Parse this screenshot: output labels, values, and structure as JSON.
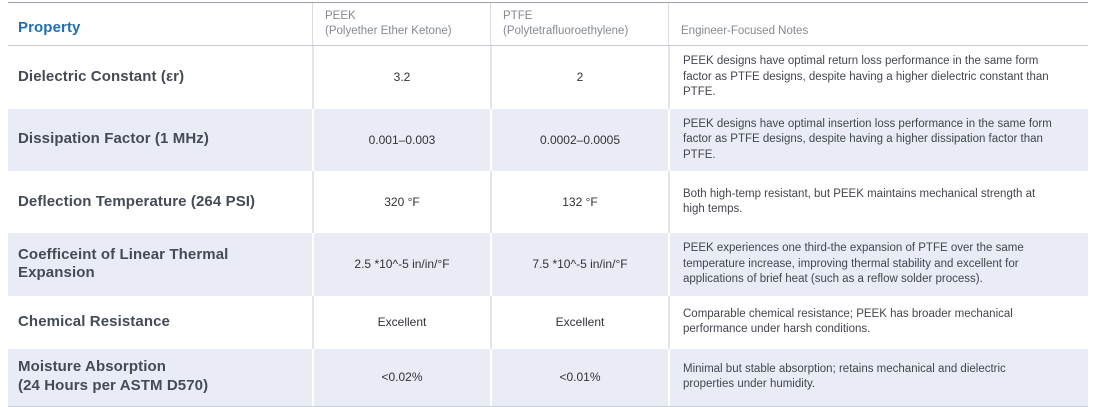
{
  "table": {
    "columns": {
      "property": {
        "label": "Property"
      },
      "peek": {
        "label": "PEEK",
        "sublabel": "(Polyether Ether Ketone)"
      },
      "ptfe": {
        "label": "PTFE",
        "sublabel": "(Polytetrafluoroethylene)"
      },
      "notes": {
        "label": "Engineer-Focused Notes"
      }
    },
    "rows": [
      {
        "property": "Dielectric Constant (εr)",
        "peek": "3.2",
        "ptfe": "2",
        "notes": "PEEK designs have optimal return loss performance in the same form factor as PTFE designs, despite having a higher dielectric constant than PTFE."
      },
      {
        "property": "Dissipation Factor (1 MHz)",
        "peek": "0.001–0.003",
        "ptfe": "0.0002–0.0005",
        "notes": "PEEK designs have optimal insertion loss performance in the same form factor as PTFE designs, despite having a higher dissipation factor than PTFE."
      },
      {
        "property": "Deflection Temperature (264 PSI)",
        "peek": "320 °F",
        "ptfe": "132 °F",
        "notes": "Both high-temp resistant, but PEEK maintains mechanical strength at high temps."
      },
      {
        "property": "Coefficeint of Linear Thermal Expansion",
        "peek": "2.5 *10^-5 in/in/°F",
        "ptfe": "7.5 *10^-5 in/in/°F",
        "notes": "PEEK experiences one third-the expansion of PTFE over the same temperature increase, improving thermal stability and excellent for applications of brief heat (such as a reflow solder process)."
      },
      {
        "property": "Chemical Resistance",
        "peek": "Excellent",
        "ptfe": "Excellent",
        "notes": "Comparable chemical resistance; PEEK has broader mechanical performance under harsh conditions."
      },
      {
        "property": "Moisture Absorption\n(24 Hours per ASTM D570)",
        "peek": "<0.02%",
        "ptfe": "<0.01%",
        "notes": "Minimal but stable absorption; retains mechanical and dielectric properties under humidity."
      }
    ]
  },
  "colors": {
    "accent_blue": "#1f6fb4",
    "stripe": "#e9ecf4",
    "property_text": "#444b57",
    "muted_header": "#84898f"
  },
  "chart_data": {
    "type": "table",
    "title": "PEEK vs PTFE material property comparison",
    "columns": [
      "Property",
      "PEEK (Polyether Ether Ketone)",
      "PTFE (Polytetrafluoroethylene)",
      "Engineer-Focused Notes"
    ],
    "rows": [
      [
        "Dielectric Constant (εr)",
        "3.2",
        "2",
        "PEEK designs have optimal return loss performance in the same form factor as PTFE designs, despite having a higher dielectric constant than PTFE."
      ],
      [
        "Dissipation Factor (1 MHz)",
        "0.001–0.003",
        "0.0002–0.0005",
        "PEEK designs have optimal insertion loss performance in the same form factor as PTFE designs, despite having a higher dissipation factor than PTFE."
      ],
      [
        "Deflection Temperature (264 PSI)",
        "320 °F",
        "132 °F",
        "Both high-temp resistant, but PEEK maintains mechanical strength at high temps."
      ],
      [
        "Coefficeint of Linear Thermal Expansion",
        "2.5 *10^-5 in/in/°F",
        "7.5 *10^-5 in/in/°F",
        "PEEK experiences one third-the expansion of PTFE over the same temperature increase, improving thermal stability and excellent for applications of brief heat (such as a reflow solder process)."
      ],
      [
        "Chemical Resistance",
        "Excellent",
        "Excellent",
        "Comparable chemical resistance; PEEK has broader mechanical performance under harsh conditions."
      ],
      [
        "Moisture Absorption (24 Hours per ASTM D570)",
        "<0.02%",
        "<0.01%",
        "Minimal but stable absorption; retains mechanical and dielectric properties under humidity."
      ]
    ]
  }
}
